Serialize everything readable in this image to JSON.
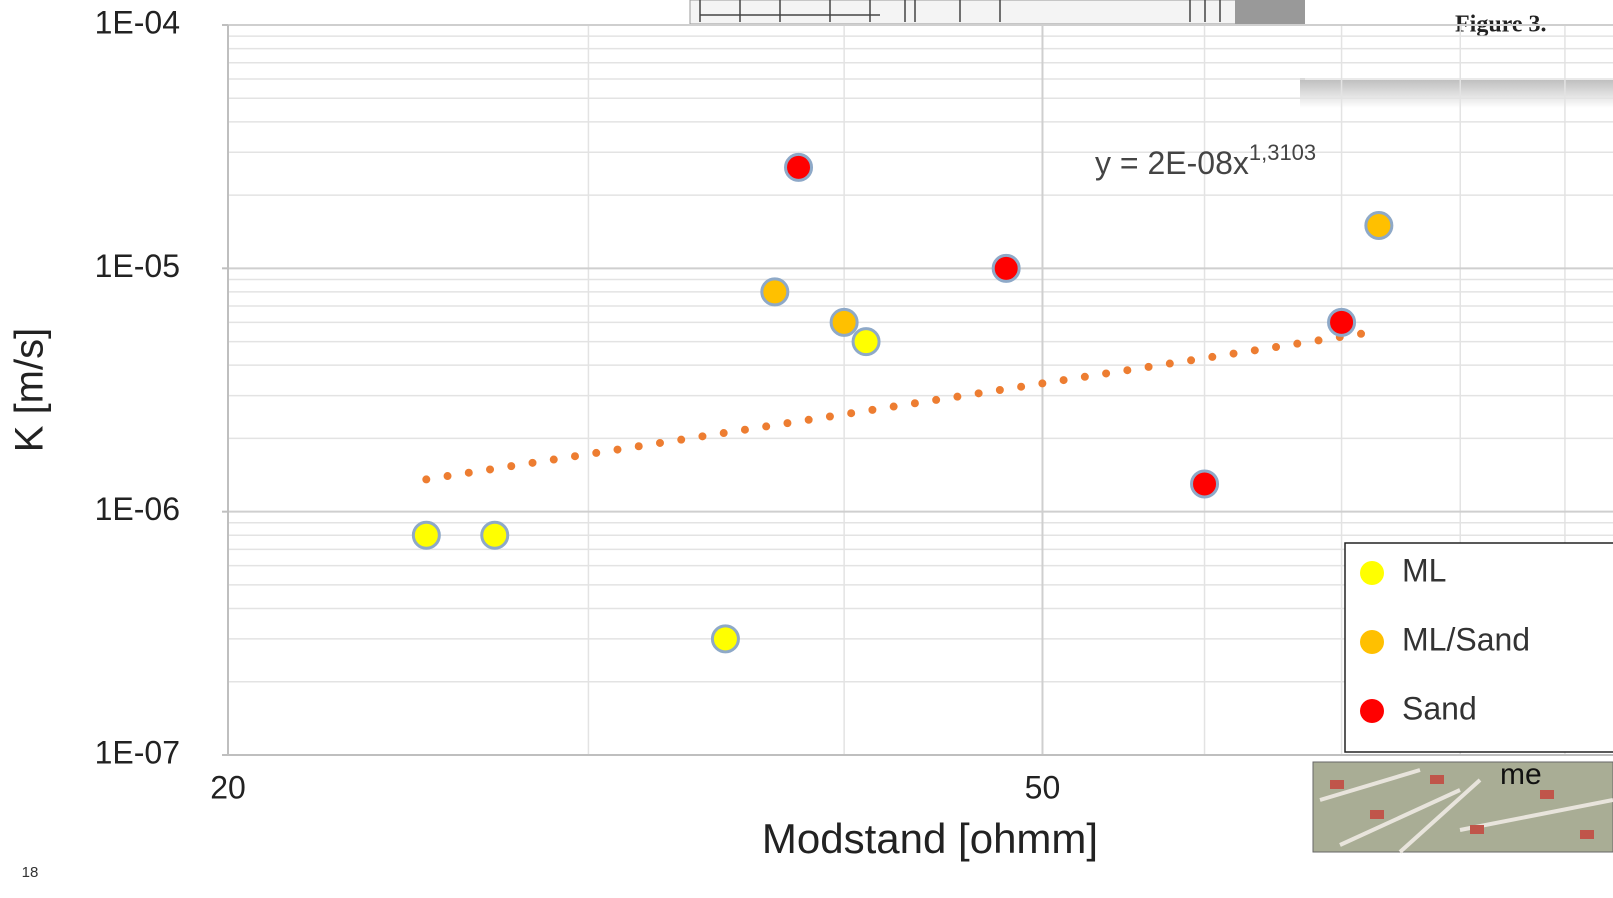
{
  "chart_data": {
    "type": "scatter",
    "log_x": true,
    "log_y": true,
    "grid": true,
    "minor_grid": true,
    "x_label": "Modstand [ohmm]",
    "y_label": "K [m/s]",
    "xlim": [
      20,
      95
    ],
    "ylim": [
      1e-07,
      0.0001
    ],
    "xticks": [
      20,
      50
    ],
    "yticks": [
      {
        "value": 1e-07,
        "label": "1E-07"
      },
      {
        "value": 1e-06,
        "label": "1E-06"
      },
      {
        "value": 1e-05,
        "label": "1E-05"
      },
      {
        "value": 0.0001,
        "label": "1E-04"
      }
    ],
    "legend": "right",
    "series": [
      {
        "name": "ML",
        "color": "#ffff00",
        "x": [
          25,
          27,
          35,
          41
        ],
        "values": [
          8e-07,
          8e-07,
          3e-07,
          5e-06
        ]
      },
      {
        "name": "ML/Sand",
        "color": "#ffc000",
        "x": [
          37,
          40,
          73
        ],
        "values": [
          8e-06,
          6e-06,
          1.5e-05
        ]
      },
      {
        "name": "Sand",
        "color": "#ff0000",
        "x": [
          38,
          48,
          60,
          70
        ],
        "values": [
          2.6e-05,
          1e-05,
          1.3e-06,
          6e-06
        ]
      }
    ],
    "trendline": {
      "label": "y = 2E-08x",
      "exponent_label": "1,3103",
      "coef": 2e-08,
      "exponent": 1.3103,
      "color": "#ed7d31"
    }
  },
  "page_number": "18",
  "overlay": {
    "caption": "Figure 3.",
    "map_text": "me"
  }
}
